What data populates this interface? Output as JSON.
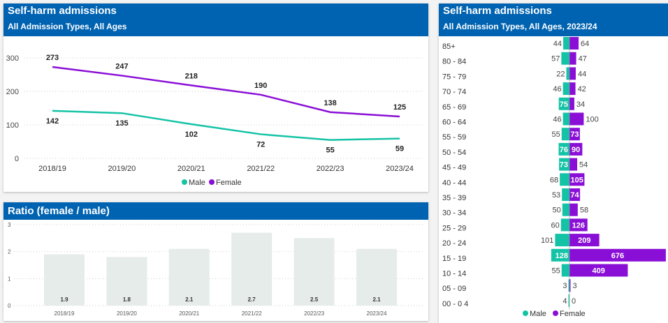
{
  "colors": {
    "header": "#0063b1",
    "male": "#14c3a6",
    "female": "#8a0fd6",
    "ratio_bar": "#e6ecea"
  },
  "line_panel": {
    "title": "Self-harm admissions",
    "subtitle": "All Admission Types, All Ages"
  },
  "ratio_panel": {
    "title": "Ratio (female / male)"
  },
  "pyramid_panel": {
    "title": "Self-harm admissions",
    "subtitle": "All Admission Types, All Ages, 2023/24"
  },
  "chart_data": [
    {
      "type": "line",
      "title": "Self-harm admissions",
      "subtitle": "All Admission Types, All Ages",
      "categories": [
        "2018/19",
        "2019/20",
        "2020/21",
        "2021/22",
        "2022/23",
        "2023/24"
      ],
      "series": [
        {
          "name": "Male",
          "values": [
            142,
            135,
            102,
            72,
            55,
            59
          ]
        },
        {
          "name": "Female",
          "values": [
            273,
            247,
            218,
            190,
            138,
            125
          ]
        }
      ],
      "yticks": [
        0,
        100,
        200,
        300
      ],
      "ylim": [
        0,
        300
      ],
      "grid": true,
      "legend": "bottom",
      "legend_labels": [
        "Male",
        "Female"
      ]
    },
    {
      "type": "bar",
      "title": "Ratio (female / male)",
      "categories": [
        "2018/19",
        "2019/20",
        "2020/21",
        "2021/22",
        "2022/23",
        "2023/24"
      ],
      "values": [
        1.9,
        1.8,
        2.1,
        2.7,
        2.5,
        2.1
      ],
      "labels": [
        "1.9",
        "1.8",
        "2.1",
        "2.7",
        "2.5",
        "2.1"
      ],
      "yticks": [
        0,
        1,
        2,
        3
      ],
      "ylim": [
        0,
        3
      ],
      "grid": true
    },
    {
      "type": "bar",
      "title": "Self-harm admissions",
      "subtitle": "All Admission Types, All Ages, 2023/24",
      "orientation": "horizontal-pyramid",
      "categories": [
        "85+",
        "80 - 84",
        "75 - 79",
        "70 - 74",
        "65 - 69",
        "60 - 64",
        "55 - 59",
        "50 - 54",
        "45 - 49",
        "40 - 44",
        "35 - 39",
        "30 - 34",
        "25 - 29",
        "20 - 24",
        "15 - 19",
        "10 - 14",
        "05 - 09",
        "00 - 0 4"
      ],
      "series": [
        {
          "name": "Male",
          "values": [
            44,
            57,
            22,
            46,
            75,
            46,
            55,
            76,
            73,
            68,
            53,
            50,
            60,
            101,
            128,
            55,
            3,
            4
          ],
          "label_inside": [
            false,
            false,
            false,
            false,
            true,
            false,
            false,
            true,
            true,
            false,
            false,
            false,
            false,
            false,
            true,
            false,
            false,
            false
          ]
        },
        {
          "name": "Female",
          "values": [
            64,
            47,
            44,
            42,
            34,
            100,
            73,
            90,
            54,
            105,
            74,
            58,
            126,
            209,
            676,
            409,
            3,
            0
          ],
          "label_inside": [
            false,
            false,
            false,
            false,
            false,
            false,
            true,
            true,
            false,
            true,
            true,
            false,
            true,
            true,
            true,
            true,
            false,
            false
          ]
        }
      ],
      "legend": "bottom",
      "legend_labels": [
        "Male",
        "Female"
      ]
    }
  ]
}
